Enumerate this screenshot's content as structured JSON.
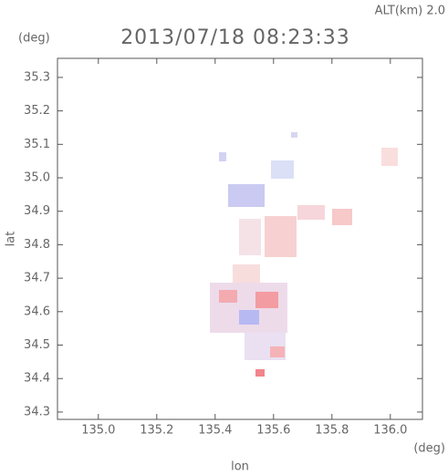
{
  "chart_data": {
    "type": "map",
    "title": "2013/07/18 08:23:33",
    "subtitle": "ALT(km) 2.0",
    "y_unit": "(deg)",
    "x_unit": "(deg)",
    "x_label": "lon",
    "y_label": "lat",
    "xlim": [
      134.86,
      136.11
    ],
    "ylim": [
      34.278,
      35.357
    ],
    "xticks": [
      {
        "value": 135,
        "label": "135.0"
      },
      135.2,
      135.4,
      135.6,
      135.8,
      {
        "value": 136,
        "label": "136.0"
      }
    ],
    "yticks": [
      34.3,
      34.4,
      34.5,
      34.6,
      34.7,
      34.8,
      34.9,
      {
        "value": 35,
        "label": "35.0"
      },
      35.1,
      35.2,
      35.3
    ]
  }
}
